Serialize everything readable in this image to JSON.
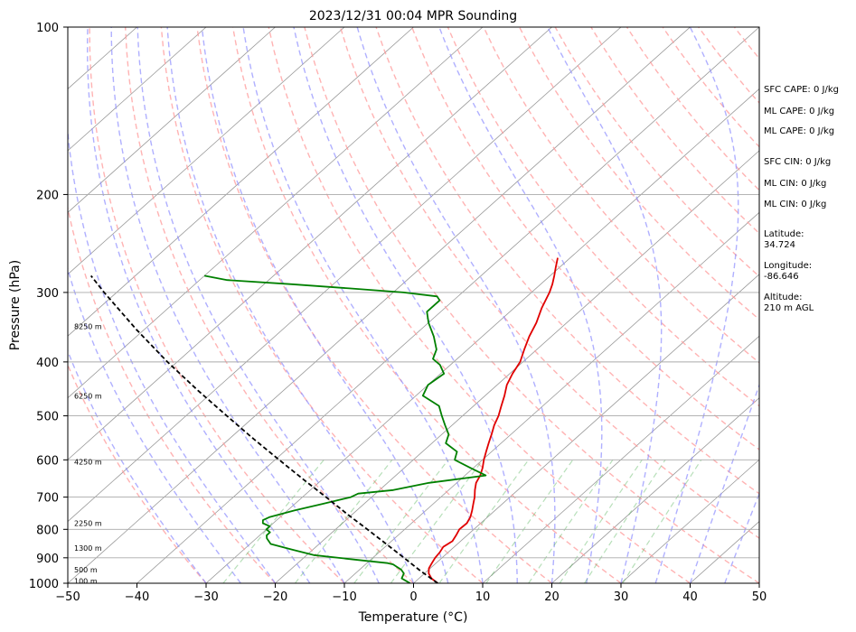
{
  "chart_data": {
    "type": "line",
    "title": "2023/12/31 00:04 MPR Sounding",
    "xlabel": "Temperature (°C)",
    "ylabel": "Pressure (hPa)",
    "xlim": [
      -50,
      50
    ],
    "ylim": [
      1000,
      100
    ],
    "y_scale": "log",
    "skew": "skew-T",
    "grid": true,
    "x_ticks": [
      "−50",
      "−40",
      "−30",
      "−20",
      "−10",
      "0",
      "10",
      "20",
      "30",
      "40",
      "50"
    ],
    "y_ticks": [
      "100",
      "200",
      "300",
      "400",
      "500",
      "600",
      "700",
      "800",
      "900",
      "1000"
    ],
    "series": [
      {
        "role": "temperature",
        "color": "#e00000",
        "p": [
          1000,
          980,
          960,
          940,
          920,
          900,
          880,
          860,
          840,
          820,
          800,
          780,
          760,
          740,
          720,
          700,
          680,
          660,
          640,
          620,
          600,
          580,
          560,
          540,
          520,
          500,
          480,
          460,
          440,
          420,
          400,
          380,
          360,
          340,
          320,
          300,
          290,
          280,
          270,
          260
        ],
        "t": [
          3.5,
          1.8,
          0.6,
          -0.2,
          -0.6,
          -1.0,
          -1.2,
          -1.6,
          -1.2,
          -1.6,
          -2.1,
          -2.0,
          -2.5,
          -3.3,
          -4.2,
          -5.1,
          -6.2,
          -7.2,
          -7.8,
          -8.7,
          -9.8,
          -10.8,
          -11.8,
          -12.8,
          -13.9,
          -14.8,
          -16.0,
          -17.2,
          -18.6,
          -19.6,
          -20.4,
          -21.8,
          -23.2,
          -24.4,
          -26.0,
          -27.4,
          -28.3,
          -29.4,
          -30.6,
          -31.8
        ]
      },
      {
        "role": "dewpoint",
        "color": "#008000",
        "p": [
          1000,
          990,
          980,
          960,
          945,
          935,
          925,
          920,
          910,
          890,
          870,
          850,
          830,
          820,
          810,
          800,
          790,
          780,
          770,
          760,
          740,
          720,
          700,
          690,
          680,
          660,
          640,
          620,
          600,
          590,
          580,
          560,
          540,
          520,
          500,
          480,
          460,
          440,
          420,
          405,
          395,
          380,
          360,
          340,
          325,
          310,
          305,
          300,
          295,
          290,
          285,
          280
        ],
        "td": [
          -0.5,
          -1.5,
          -2.5,
          -3.0,
          -4.0,
          -5.0,
          -6.0,
          -7.0,
          -11.0,
          -19.0,
          -23.0,
          -27.0,
          -28.5,
          -29.0,
          -29.0,
          -30.0,
          -30.0,
          -31.5,
          -32.0,
          -31.5,
          -29.0,
          -26.0,
          -23.0,
          -22.5,
          -18.0,
          -14.0,
          -7.0,
          -10.5,
          -14.0,
          -14.5,
          -15.0,
          -18.0,
          -19.0,
          -21.0,
          -23.0,
          -25.0,
          -29.0,
          -30.0,
          -29.5,
          -31.5,
          -33.5,
          -34.5,
          -37.0,
          -40.0,
          -42.0,
          -42.0,
          -43.0,
          -48.5,
          -57.0,
          -66.0,
          -76.0,
          -80.0
        ]
      },
      {
        "role": "parcel",
        "color": "#000000",
        "style": "dashed",
        "p": [
          1000,
          950,
          900,
          850,
          800,
          750,
          700,
          650,
          600,
          550,
          500,
          450,
          400,
          350,
          300,
          280
        ],
        "t": [
          3.5,
          -1.0,
          -5.5,
          -10.3,
          -15.4,
          -20.9,
          -26.6,
          -32.8,
          -39.4,
          -46.5,
          -54.1,
          -62.4,
          -71.4,
          -81.1,
          -91.8,
          -96.4
        ]
      }
    ],
    "height_markers": [
      {
        "label": "100 m",
        "p": 990
      },
      {
        "label": "500 m",
        "p": 945
      },
      {
        "label": "1300 m",
        "p": 865
      },
      {
        "label": "2250 m",
        "p": 780
      },
      {
        "label": "4250 m",
        "p": 605
      },
      {
        "label": "6250 m",
        "p": 460
      },
      {
        "label": "8250 m",
        "p": 345
      }
    ],
    "background_lines": {
      "isotherms_every_c": 10,
      "dry_adiabat_color": "#ff9999",
      "moist_adiabat_color": "#8f8fff",
      "mixing_ratio_color": "#4caf50"
    }
  },
  "side_panel": {
    "sfc_cape": "SFC CAPE: 0 J/kg",
    "ml_cape_1": "ML CAPE: 0 J/kg",
    "ml_cape_2": "ML CAPE: 0 J/kg",
    "sfc_cin": "SFC CIN: 0 J/kg",
    "ml_cin_1": "ML CIN: 0 J/kg",
    "ml_cin_2": "ML CIN: 0 J/kg",
    "latitude_label": "Latitude:",
    "latitude_value": "34.724",
    "longitude_label": "Longitude:",
    "longitude_value": "-86.646",
    "altitude_label": "Altitude:",
    "altitude_value": "210 m AGL"
  }
}
